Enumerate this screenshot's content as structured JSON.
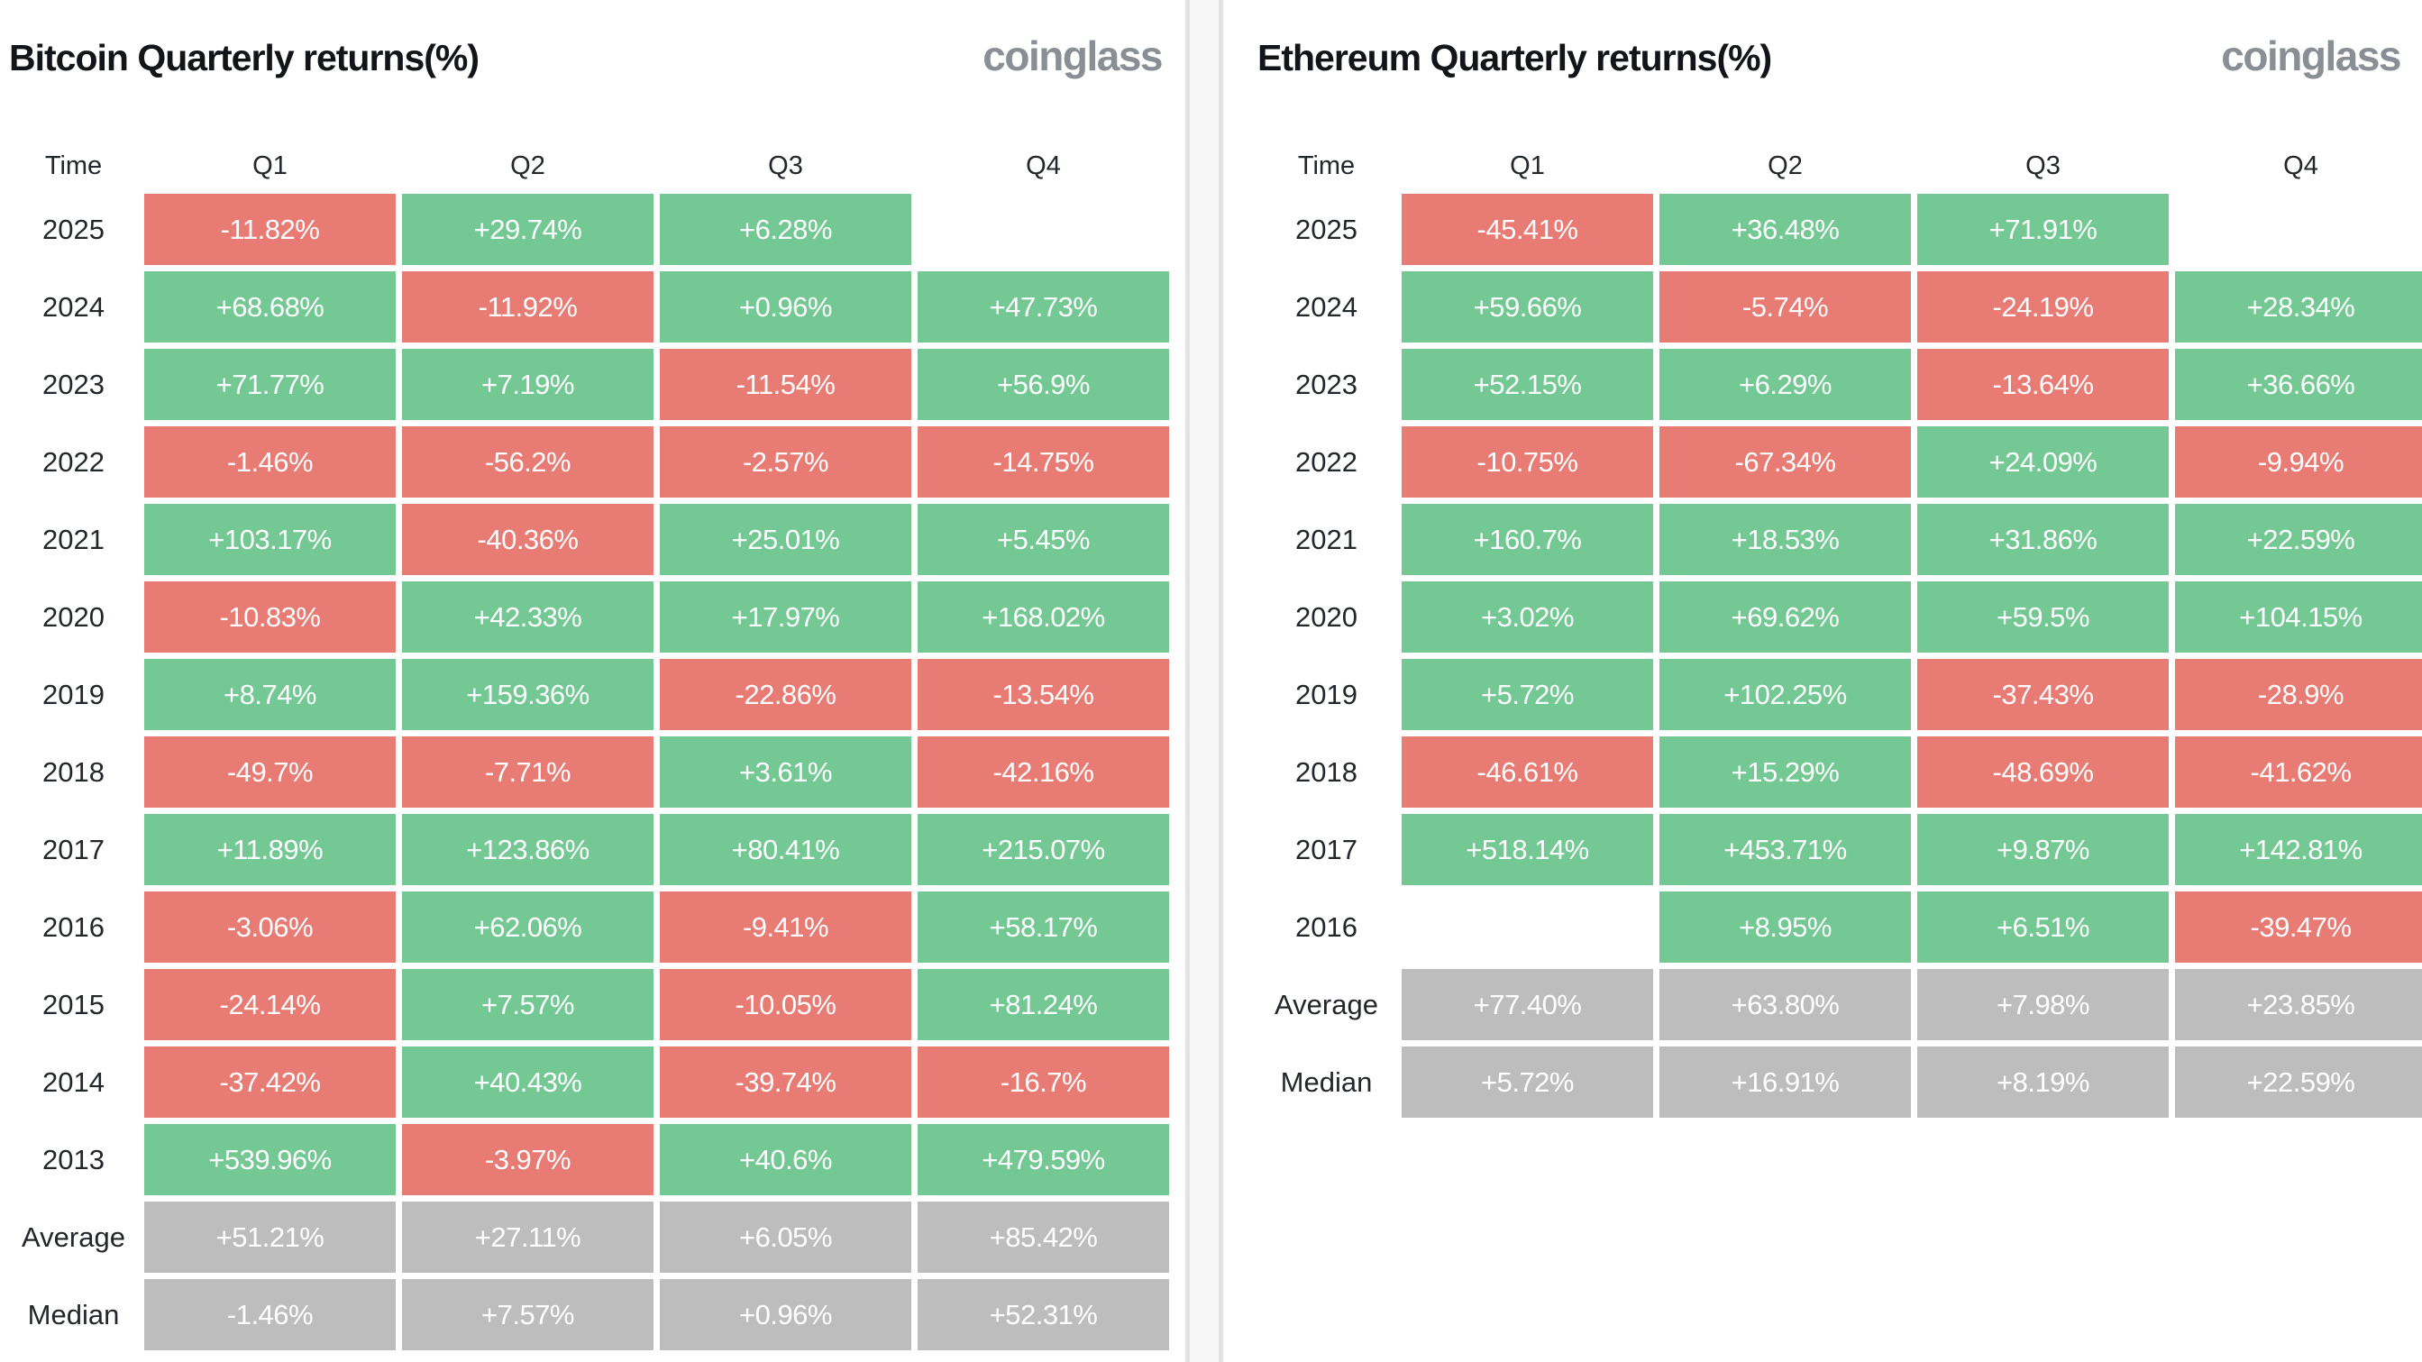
{
  "colors": {
    "green": "#73c893",
    "red": "#e87b74",
    "gray": "#bdbdbd",
    "title_text": "#121418",
    "label_text": "#23262b",
    "logo_text": "#8a8e95",
    "divider": "#e3e3e6",
    "page_background": "#f7f7f8"
  },
  "panels": [
    {
      "title": "Bitcoin Quarterly returns(%)",
      "logo": "coinglass",
      "columns": [
        "Time",
        "Q1",
        "Q2",
        "Q3",
        "Q4"
      ],
      "rows": [
        {
          "label": "2025",
          "cells": [
            {
              "text": "-11.82%",
              "type": "negative"
            },
            {
              "text": "+29.74%",
              "type": "positive"
            },
            {
              "text": "+6.28%",
              "type": "positive"
            },
            {
              "text": "",
              "type": "empty"
            }
          ]
        },
        {
          "label": "2024",
          "cells": [
            {
              "text": "+68.68%",
              "type": "positive"
            },
            {
              "text": "-11.92%",
              "type": "negative"
            },
            {
              "text": "+0.96%",
              "type": "positive"
            },
            {
              "text": "+47.73%",
              "type": "positive"
            }
          ]
        },
        {
          "label": "2023",
          "cells": [
            {
              "text": "+71.77%",
              "type": "positive"
            },
            {
              "text": "+7.19%",
              "type": "positive"
            },
            {
              "text": "-11.54%",
              "type": "negative"
            },
            {
              "text": "+56.9%",
              "type": "positive"
            }
          ]
        },
        {
          "label": "2022",
          "cells": [
            {
              "text": "-1.46%",
              "type": "negative"
            },
            {
              "text": "-56.2%",
              "type": "negative"
            },
            {
              "text": "-2.57%",
              "type": "negative"
            },
            {
              "text": "-14.75%",
              "type": "negative"
            }
          ]
        },
        {
          "label": "2021",
          "cells": [
            {
              "text": "+103.17%",
              "type": "positive"
            },
            {
              "text": "-40.36%",
              "type": "negative"
            },
            {
              "text": "+25.01%",
              "type": "positive"
            },
            {
              "text": "+5.45%",
              "type": "positive"
            }
          ]
        },
        {
          "label": "2020",
          "cells": [
            {
              "text": "-10.83%",
              "type": "negative"
            },
            {
              "text": "+42.33%",
              "type": "positive"
            },
            {
              "text": "+17.97%",
              "type": "positive"
            },
            {
              "text": "+168.02%",
              "type": "positive"
            }
          ]
        },
        {
          "label": "2019",
          "cells": [
            {
              "text": "+8.74%",
              "type": "positive"
            },
            {
              "text": "+159.36%",
              "type": "positive"
            },
            {
              "text": "-22.86%",
              "type": "negative"
            },
            {
              "text": "-13.54%",
              "type": "negative"
            }
          ]
        },
        {
          "label": "2018",
          "cells": [
            {
              "text": "-49.7%",
              "type": "negative"
            },
            {
              "text": "-7.71%",
              "type": "negative"
            },
            {
              "text": "+3.61%",
              "type": "positive"
            },
            {
              "text": "-42.16%",
              "type": "negative"
            }
          ]
        },
        {
          "label": "2017",
          "cells": [
            {
              "text": "+11.89%",
              "type": "positive"
            },
            {
              "text": "+123.86%",
              "type": "positive"
            },
            {
              "text": "+80.41%",
              "type": "positive"
            },
            {
              "text": "+215.07%",
              "type": "positive"
            }
          ]
        },
        {
          "label": "2016",
          "cells": [
            {
              "text": "-3.06%",
              "type": "negative"
            },
            {
              "text": "+62.06%",
              "type": "positive"
            },
            {
              "text": "-9.41%",
              "type": "negative"
            },
            {
              "text": "+58.17%",
              "type": "positive"
            }
          ]
        },
        {
          "label": "2015",
          "cells": [
            {
              "text": "-24.14%",
              "type": "negative"
            },
            {
              "text": "+7.57%",
              "type": "positive"
            },
            {
              "text": "-10.05%",
              "type": "negative"
            },
            {
              "text": "+81.24%",
              "type": "positive"
            }
          ]
        },
        {
          "label": "2014",
          "cells": [
            {
              "text": "-37.42%",
              "type": "negative"
            },
            {
              "text": "+40.43%",
              "type": "positive"
            },
            {
              "text": "-39.74%",
              "type": "negative"
            },
            {
              "text": "-16.7%",
              "type": "negative"
            }
          ]
        },
        {
          "label": "2013",
          "cells": [
            {
              "text": "+539.96%",
              "type": "positive"
            },
            {
              "text": "-3.97%",
              "type": "negative"
            },
            {
              "text": "+40.6%",
              "type": "positive"
            },
            {
              "text": "+479.59%",
              "type": "positive"
            }
          ]
        },
        {
          "label": "Average",
          "cells": [
            {
              "text": "+51.21%",
              "type": "summary"
            },
            {
              "text": "+27.11%",
              "type": "summary"
            },
            {
              "text": "+6.05%",
              "type": "summary"
            },
            {
              "text": "+85.42%",
              "type": "summary"
            }
          ]
        },
        {
          "label": "Median",
          "cells": [
            {
              "text": "-1.46%",
              "type": "summary"
            },
            {
              "text": "+7.57%",
              "type": "summary"
            },
            {
              "text": "+0.96%",
              "type": "summary"
            },
            {
              "text": "+52.31%",
              "type": "summary"
            }
          ]
        }
      ]
    },
    {
      "title": "Ethereum Quarterly returns(%)",
      "logo": "coinglass",
      "columns": [
        "Time",
        "Q1",
        "Q2",
        "Q3",
        "Q4"
      ],
      "rows": [
        {
          "label": "2025",
          "cells": [
            {
              "text": "-45.41%",
              "type": "negative"
            },
            {
              "text": "+36.48%",
              "type": "positive"
            },
            {
              "text": "+71.91%",
              "type": "positive"
            },
            {
              "text": "",
              "type": "empty"
            }
          ]
        },
        {
          "label": "2024",
          "cells": [
            {
              "text": "+59.66%",
              "type": "positive"
            },
            {
              "text": "-5.74%",
              "type": "negative"
            },
            {
              "text": "-24.19%",
              "type": "negative"
            },
            {
              "text": "+28.34%",
              "type": "positive"
            }
          ]
        },
        {
          "label": "2023",
          "cells": [
            {
              "text": "+52.15%",
              "type": "positive"
            },
            {
              "text": "+6.29%",
              "type": "positive"
            },
            {
              "text": "-13.64%",
              "type": "negative"
            },
            {
              "text": "+36.66%",
              "type": "positive"
            }
          ]
        },
        {
          "label": "2022",
          "cells": [
            {
              "text": "-10.75%",
              "type": "negative"
            },
            {
              "text": "-67.34%",
              "type": "negative"
            },
            {
              "text": "+24.09%",
              "type": "positive"
            },
            {
              "text": "-9.94%",
              "type": "negative"
            }
          ]
        },
        {
          "label": "2021",
          "cells": [
            {
              "text": "+160.7%",
              "type": "positive"
            },
            {
              "text": "+18.53%",
              "type": "positive"
            },
            {
              "text": "+31.86%",
              "type": "positive"
            },
            {
              "text": "+22.59%",
              "type": "positive"
            }
          ]
        },
        {
          "label": "2020",
          "cells": [
            {
              "text": "+3.02%",
              "type": "positive"
            },
            {
              "text": "+69.62%",
              "type": "positive"
            },
            {
              "text": "+59.5%",
              "type": "positive"
            },
            {
              "text": "+104.15%",
              "type": "positive"
            }
          ]
        },
        {
          "label": "2019",
          "cells": [
            {
              "text": "+5.72%",
              "type": "positive"
            },
            {
              "text": "+102.25%",
              "type": "positive"
            },
            {
              "text": "-37.43%",
              "type": "negative"
            },
            {
              "text": "-28.9%",
              "type": "negative"
            }
          ]
        },
        {
          "label": "2018",
          "cells": [
            {
              "text": "-46.61%",
              "type": "negative"
            },
            {
              "text": "+15.29%",
              "type": "positive"
            },
            {
              "text": "-48.69%",
              "type": "negative"
            },
            {
              "text": "-41.62%",
              "type": "negative"
            }
          ]
        },
        {
          "label": "2017",
          "cells": [
            {
              "text": "+518.14%",
              "type": "positive"
            },
            {
              "text": "+453.71%",
              "type": "positive"
            },
            {
              "text": "+9.87%",
              "type": "positive"
            },
            {
              "text": "+142.81%",
              "type": "positive"
            }
          ]
        },
        {
          "label": "2016",
          "cells": [
            {
              "text": "",
              "type": "empty"
            },
            {
              "text": "+8.95%",
              "type": "positive"
            },
            {
              "text": "+6.51%",
              "type": "positive"
            },
            {
              "text": "-39.47%",
              "type": "negative"
            }
          ]
        },
        {
          "label": "Average",
          "cells": [
            {
              "text": "+77.40%",
              "type": "summary"
            },
            {
              "text": "+63.80%",
              "type": "summary"
            },
            {
              "text": "+7.98%",
              "type": "summary"
            },
            {
              "text": "+23.85%",
              "type": "summary"
            }
          ]
        },
        {
          "label": "Median",
          "cells": [
            {
              "text": "+5.72%",
              "type": "summary"
            },
            {
              "text": "+16.91%",
              "type": "summary"
            },
            {
              "text": "+8.19%",
              "type": "summary"
            },
            {
              "text": "+22.59%",
              "type": "summary"
            }
          ]
        }
      ]
    }
  ],
  "chart_data": [
    {
      "type": "heatmap",
      "title": "Bitcoin Quarterly returns(%)",
      "watermark": "coinglass",
      "x_categories": [
        "Q1",
        "Q2",
        "Q3",
        "Q4"
      ],
      "y_categories": [
        "2025",
        "2024",
        "2023",
        "2022",
        "2021",
        "2020",
        "2019",
        "2018",
        "2017",
        "2016",
        "2015",
        "2014",
        "2013",
        "Average",
        "Median"
      ],
      "values": [
        [
          -11.82,
          29.74,
          6.28,
          null
        ],
        [
          68.68,
          -11.92,
          0.96,
          47.73
        ],
        [
          71.77,
          7.19,
          -11.54,
          56.9
        ],
        [
          -1.46,
          -56.2,
          -2.57,
          -14.75
        ],
        [
          103.17,
          -40.36,
          25.01,
          5.45
        ],
        [
          -10.83,
          42.33,
          17.97,
          168.02
        ],
        [
          8.74,
          159.36,
          -22.86,
          -13.54
        ],
        [
          -49.7,
          -7.71,
          3.61,
          -42.16
        ],
        [
          11.89,
          123.86,
          80.41,
          215.07
        ],
        [
          -3.06,
          62.06,
          -9.41,
          58.17
        ],
        [
          -24.14,
          7.57,
          -10.05,
          81.24
        ],
        [
          -37.42,
          40.43,
          -39.74,
          -16.7
        ],
        [
          539.96,
          -3.97,
          40.6,
          479.59
        ],
        [
          51.21,
          27.11,
          6.05,
          85.42
        ],
        [
          -1.46,
          7.57,
          0.96,
          52.31
        ]
      ],
      "unit": "%",
      "color_rule": "positive=green, negative=red, Average/Median rows=gray, missing=blank"
    },
    {
      "type": "heatmap",
      "title": "Ethereum Quarterly returns(%)",
      "watermark": "coinglass",
      "x_categories": [
        "Q1",
        "Q2",
        "Q3",
        "Q4"
      ],
      "y_categories": [
        "2025",
        "2024",
        "2023",
        "2022",
        "2021",
        "2020",
        "2019",
        "2018",
        "2017",
        "2016",
        "Average",
        "Median"
      ],
      "values": [
        [
          -45.41,
          36.48,
          71.91,
          null
        ],
        [
          59.66,
          -5.74,
          -24.19,
          28.34
        ],
        [
          52.15,
          6.29,
          -13.64,
          36.66
        ],
        [
          -10.75,
          -67.34,
          24.09,
          -9.94
        ],
        [
          160.7,
          18.53,
          31.86,
          22.59
        ],
        [
          3.02,
          69.62,
          59.5,
          104.15
        ],
        [
          5.72,
          102.25,
          -37.43,
          -28.9
        ],
        [
          -46.61,
          15.29,
          -48.69,
          -41.62
        ],
        [
          518.14,
          453.71,
          9.87,
          142.81
        ],
        [
          null,
          8.95,
          6.51,
          -39.47
        ],
        [
          77.4,
          63.8,
          7.98,
          23.85
        ],
        [
          5.72,
          16.91,
          8.19,
          22.59
        ]
      ],
      "unit": "%",
      "color_rule": "positive=green, negative=red, Average/Median rows=gray, missing=blank"
    }
  ]
}
